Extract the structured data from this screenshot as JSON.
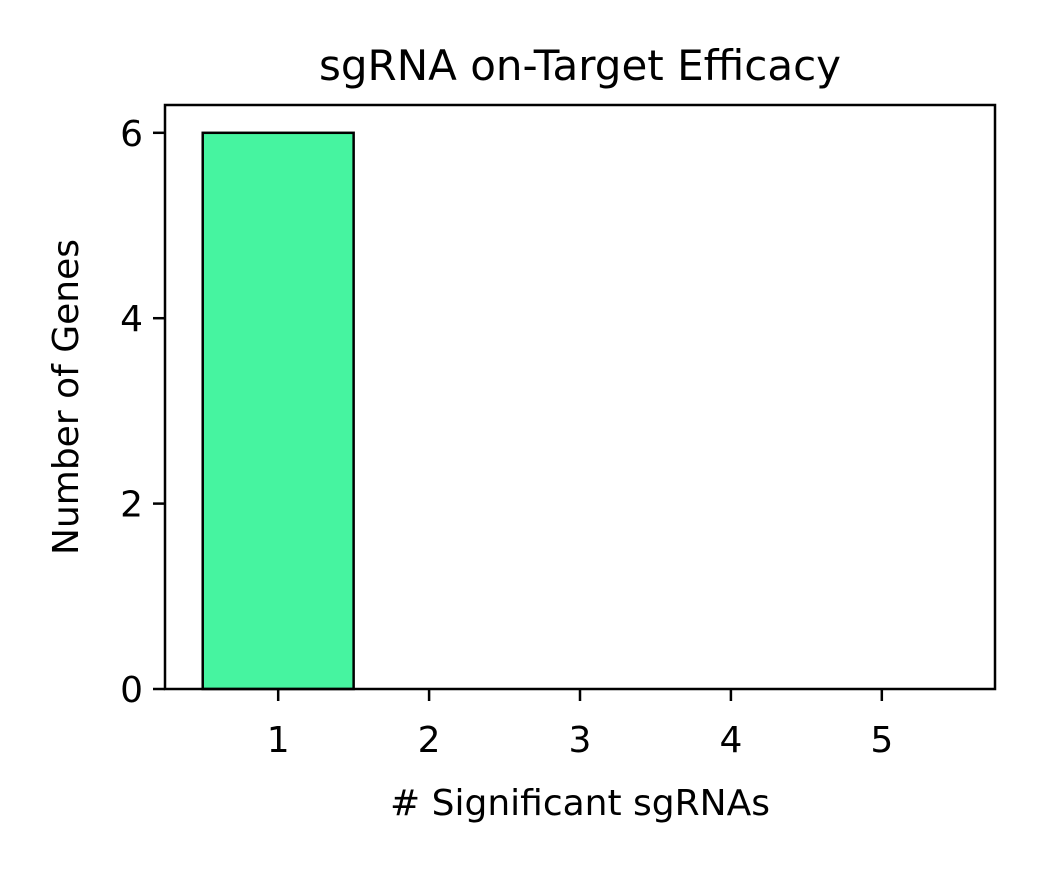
{
  "chart_data": {
    "type": "bar",
    "title": "sgRNA on-Target Efficacy",
    "xlabel": "# Significant sgRNAs",
    "ylabel": "Number of Genes",
    "categories": [
      1,
      2,
      3,
      4,
      5
    ],
    "values": [
      6,
      0,
      0,
      0,
      0
    ],
    "xlim": [
      0.25,
      5.75
    ],
    "ylim": [
      0,
      6.3
    ],
    "xticks": [
      1,
      2,
      3,
      4,
      5
    ],
    "yticks": [
      0,
      2,
      4,
      6
    ],
    "bar_width": 1,
    "grid": false,
    "legend": "none",
    "colors": {
      "bar_fill": "#46f4a0",
      "bar_edge": "#000000"
    }
  }
}
